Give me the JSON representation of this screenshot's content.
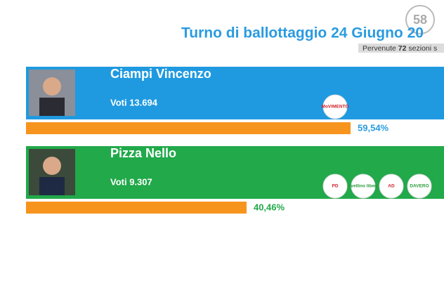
{
  "header": {
    "title": "Turno di ballottaggio 24 Giugno 20",
    "subtitle_before": "Pervenute",
    "subtitle_count": "72",
    "subtitle_after": "sezioni s",
    "logo": "58"
  },
  "candidates": [
    {
      "name": "Ciampi Vincenzo",
      "votes": "Voti 13.694",
      "percent": 59.54,
      "percent_label": "59,54%",
      "color": "#1f9ae0",
      "label_color": "#2a9be0",
      "logos": [
        "MoVIMENTO"
      ]
    },
    {
      "name": "Pizza Nello",
      "votes": "Voti 9.307",
      "percent": 40.46,
      "percent_label": "40,46%",
      "color": "#21a94a",
      "label_color": "#21a94a",
      "logos": [
        "PD",
        "Avellino libera",
        "AD",
        "DAVERO"
      ]
    }
  ]
}
